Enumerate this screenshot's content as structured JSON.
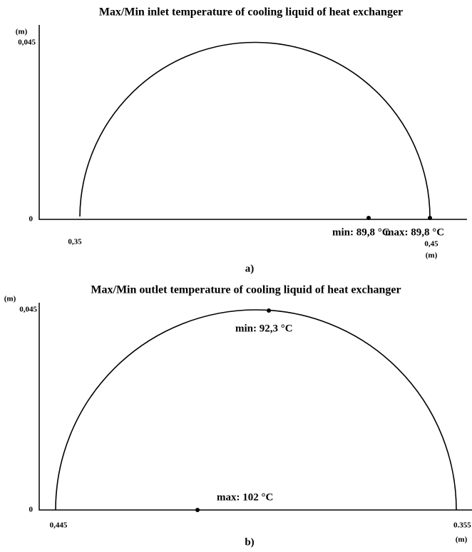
{
  "panels": [
    {
      "title": "Max/Min inlet temperature of cooling liquid of heat exchanger",
      "y_unit": "(m)",
      "y_top": "0,045",
      "y_zero": "0",
      "x_left": "0,35",
      "x_right": "0,45",
      "x_unit": "(m)",
      "annotations": [
        "min: 89,8 °C",
        "max: 89,8 °C"
      ],
      "caption": "a)"
    },
    {
      "title": "Max/Min outlet temperature of cooling liquid of heat exchanger",
      "y_unit": "(m)",
      "y_top": "0,045",
      "y_zero": "0",
      "x_left": "0,445",
      "x_right": "0.355",
      "x_unit": "(m)",
      "annotations": [
        "min: 92,3 °C",
        "max: 102 °C"
      ],
      "caption": "b)"
    }
  ]
}
